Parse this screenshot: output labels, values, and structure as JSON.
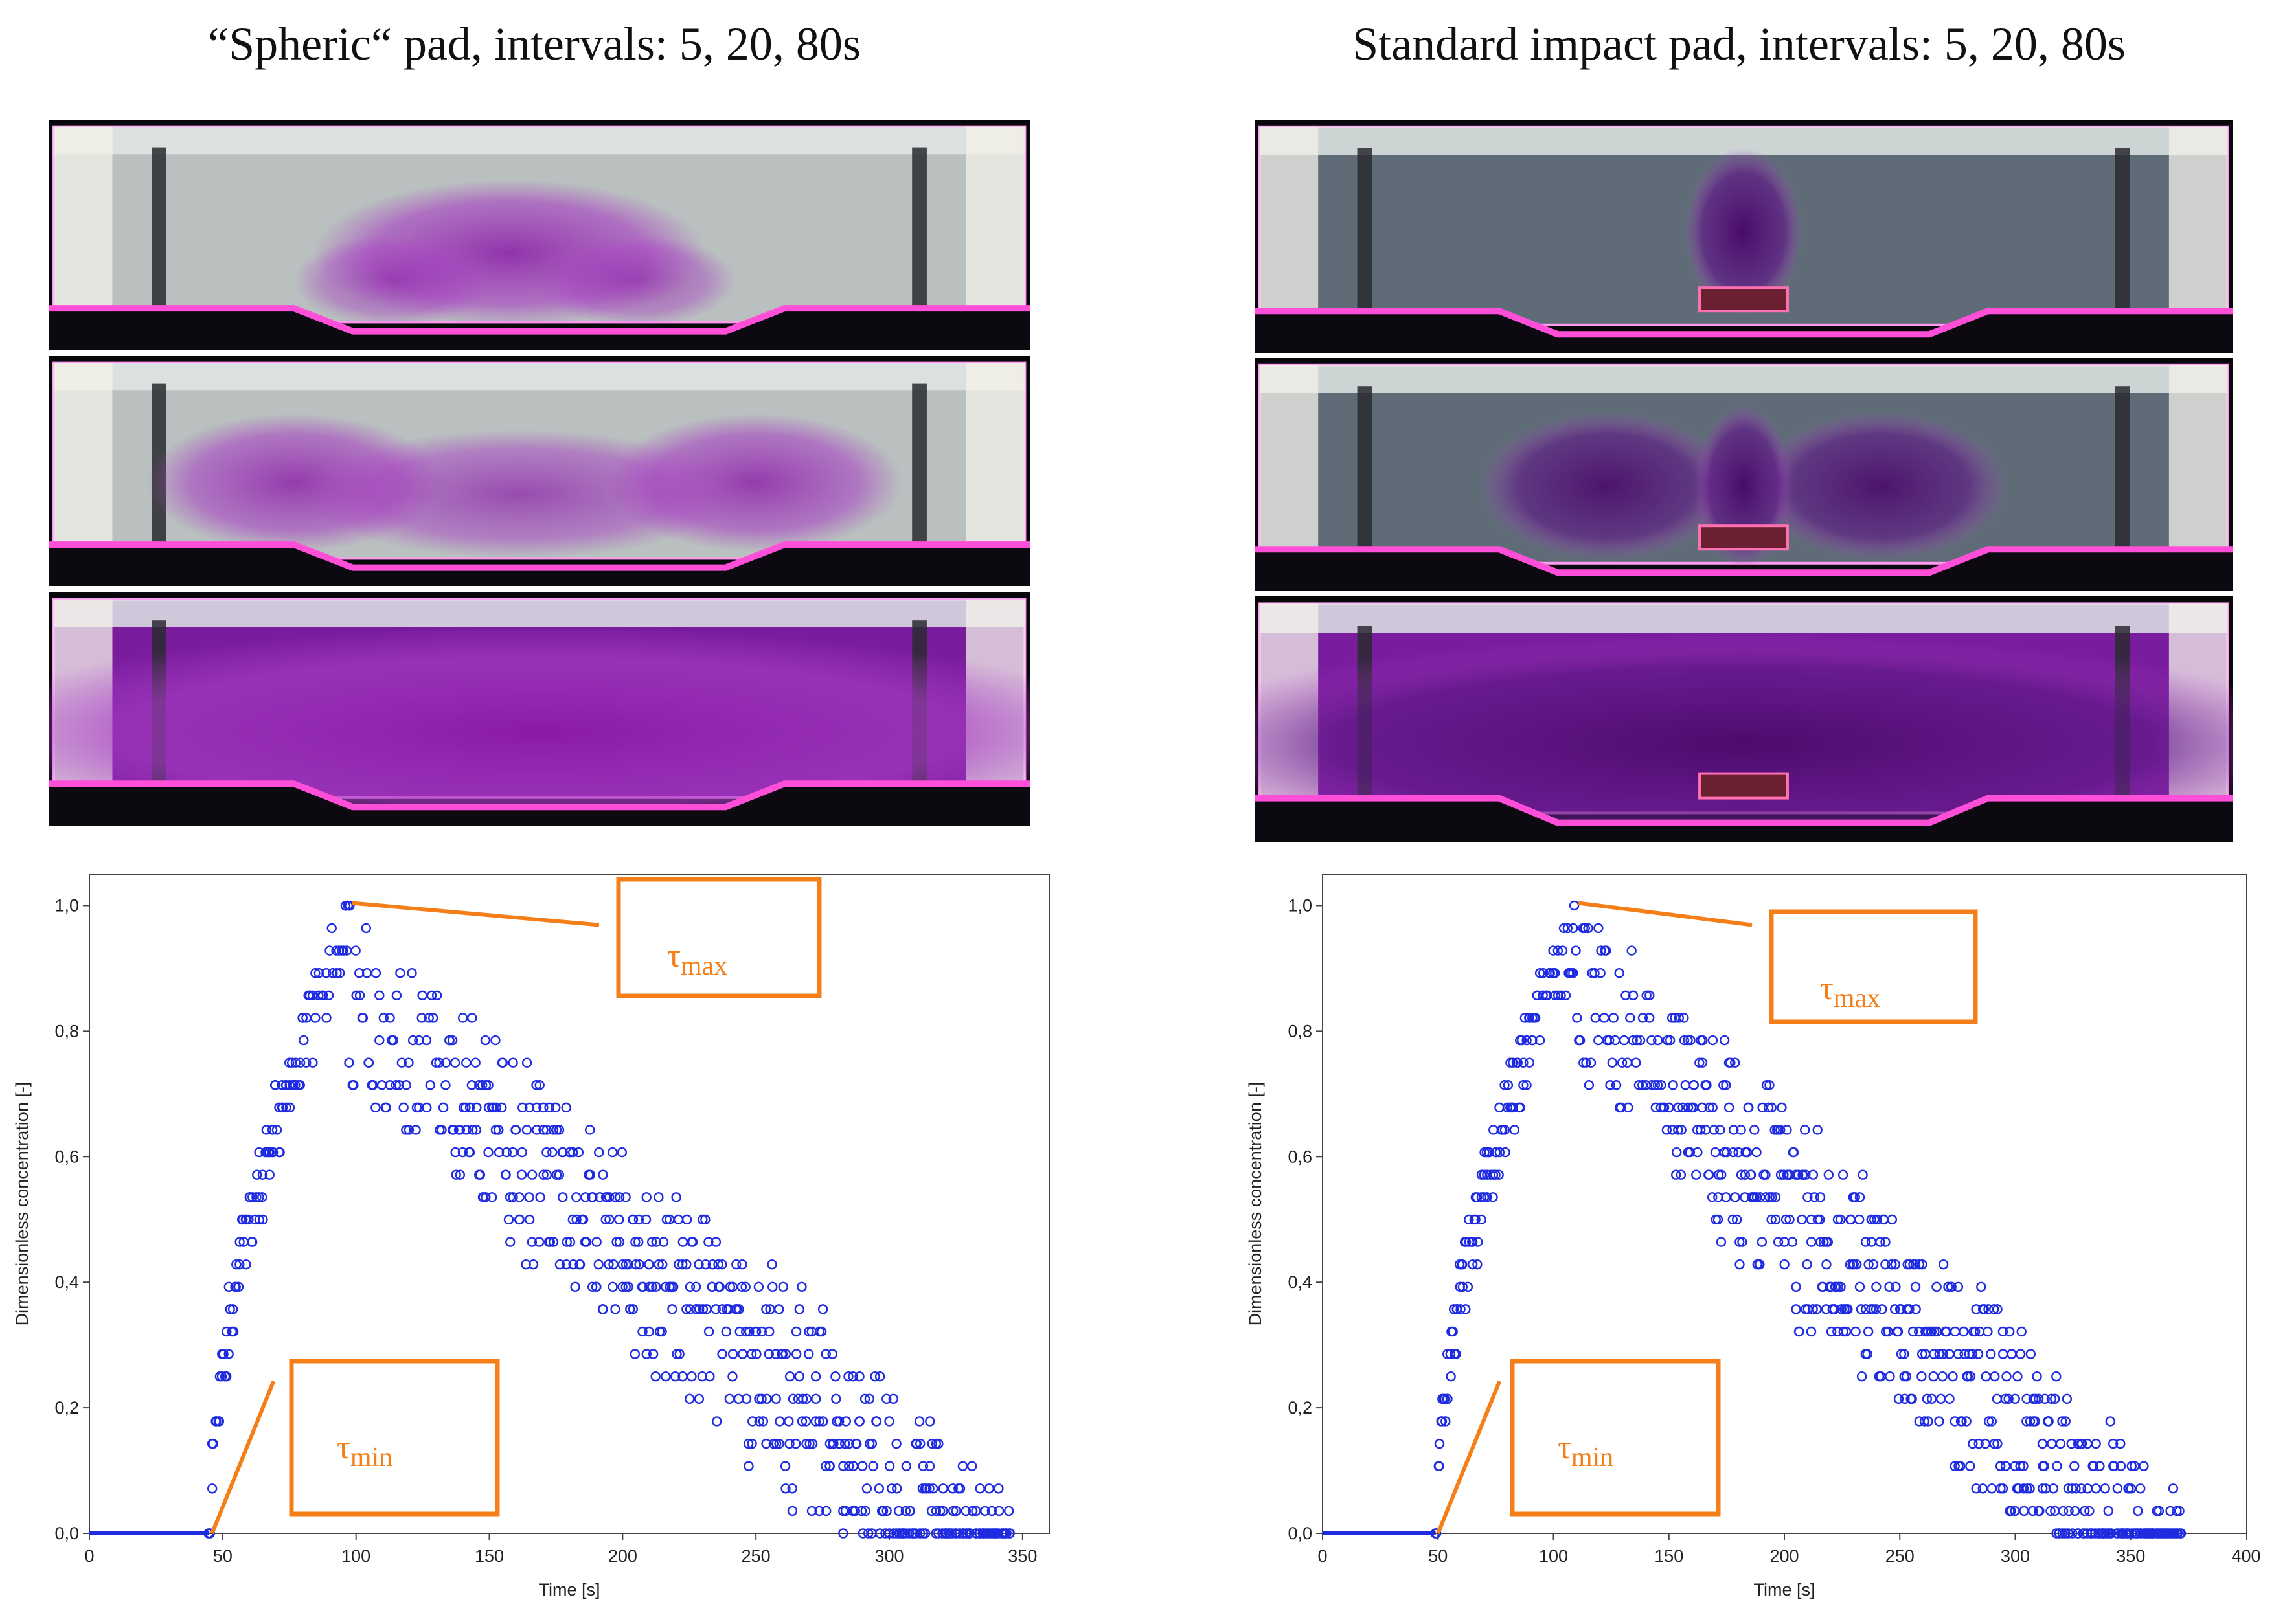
{
  "titles": {
    "left": "“Spheric“ pad, intervals: 5, 20, 80s",
    "right": "Standard impact pad, intervals: 5, 20, 80s"
  },
  "photos": {
    "left": [
      {
        "interval": "5s",
        "plume": "wide"
      },
      {
        "interval": "20s",
        "plume": "spread"
      },
      {
        "interval": "80s",
        "plume": "full"
      }
    ],
    "right": [
      {
        "interval": "5s",
        "plume": "column"
      },
      {
        "interval": "20s",
        "plume": "split"
      },
      {
        "interval": "80s",
        "plume": "full"
      }
    ]
  },
  "colors": {
    "marker": "#1f2be0",
    "annotation": "#f47f18",
    "axis": "#444444"
  },
  "annotation": {
    "tau_symbol": "τ",
    "max_sub": "max",
    "min_sub": "min"
  },
  "chart_data": [
    {
      "type": "scatter",
      "title": "",
      "xlabel": "Time [s]",
      "ylabel": "Dimensionless concentration [-]",
      "xlim": [
        0,
        360
      ],
      "ylim": [
        0,
        1.05
      ],
      "xticks": [
        0,
        50,
        100,
        150,
        200,
        250,
        300,
        350
      ],
      "xtick_labels": [
        "0",
        "50",
        "100",
        "150",
        "200",
        "250",
        "300",
        "350"
      ],
      "yticks": [
        0,
        0.2,
        0.4,
        0.6,
        0.8,
        1.0
      ],
      "ytick_labels": [
        "0,0",
        "0,2",
        "0,4",
        "0,6",
        "0,8",
        "1,0"
      ],
      "baseline": {
        "x_start": 0,
        "x_end": 45,
        "y": 0
      },
      "tau_min": {
        "t": 46
      },
      "tau_max": {
        "t": 97,
        "c": 1.0
      },
      "rise": {
        "t_start": 45,
        "t_peak": 97,
        "width": 14
      },
      "points": {
        "t_start": 45,
        "t_end": 345,
        "step": 1.25,
        "seed": 11
      },
      "legend": "none"
    },
    {
      "type": "scatter",
      "title": "",
      "xlabel": "Time [s]",
      "ylabel": "Dimensionless concentration [-]",
      "xlim": [
        0,
        400
      ],
      "ylim": [
        0,
        1.05
      ],
      "xticks": [
        0,
        50,
        100,
        150,
        200,
        250,
        300,
        350,
        400
      ],
      "xtick_labels": [
        "0",
        "50",
        "100",
        "150",
        "200",
        "250",
        "300",
        "350",
        "400"
      ],
      "yticks": [
        0,
        0.2,
        0.4,
        0.6,
        0.8,
        1.0
      ],
      "ytick_labels": [
        "0,0",
        "0,2",
        "0,4",
        "0,6",
        "0,8",
        "1,0"
      ],
      "baseline": {
        "x_start": 0,
        "x_end": 49,
        "y": 0
      },
      "tau_min": {
        "t": 50
      },
      "tau_max": {
        "t": 109,
        "c": 1.0
      },
      "rise": {
        "t_start": 49,
        "t_peak": 109,
        "width": 25
      },
      "points": {
        "t_start": 49,
        "t_end": 372,
        "step": 1.3,
        "seed": 23
      },
      "legend": "none"
    }
  ]
}
